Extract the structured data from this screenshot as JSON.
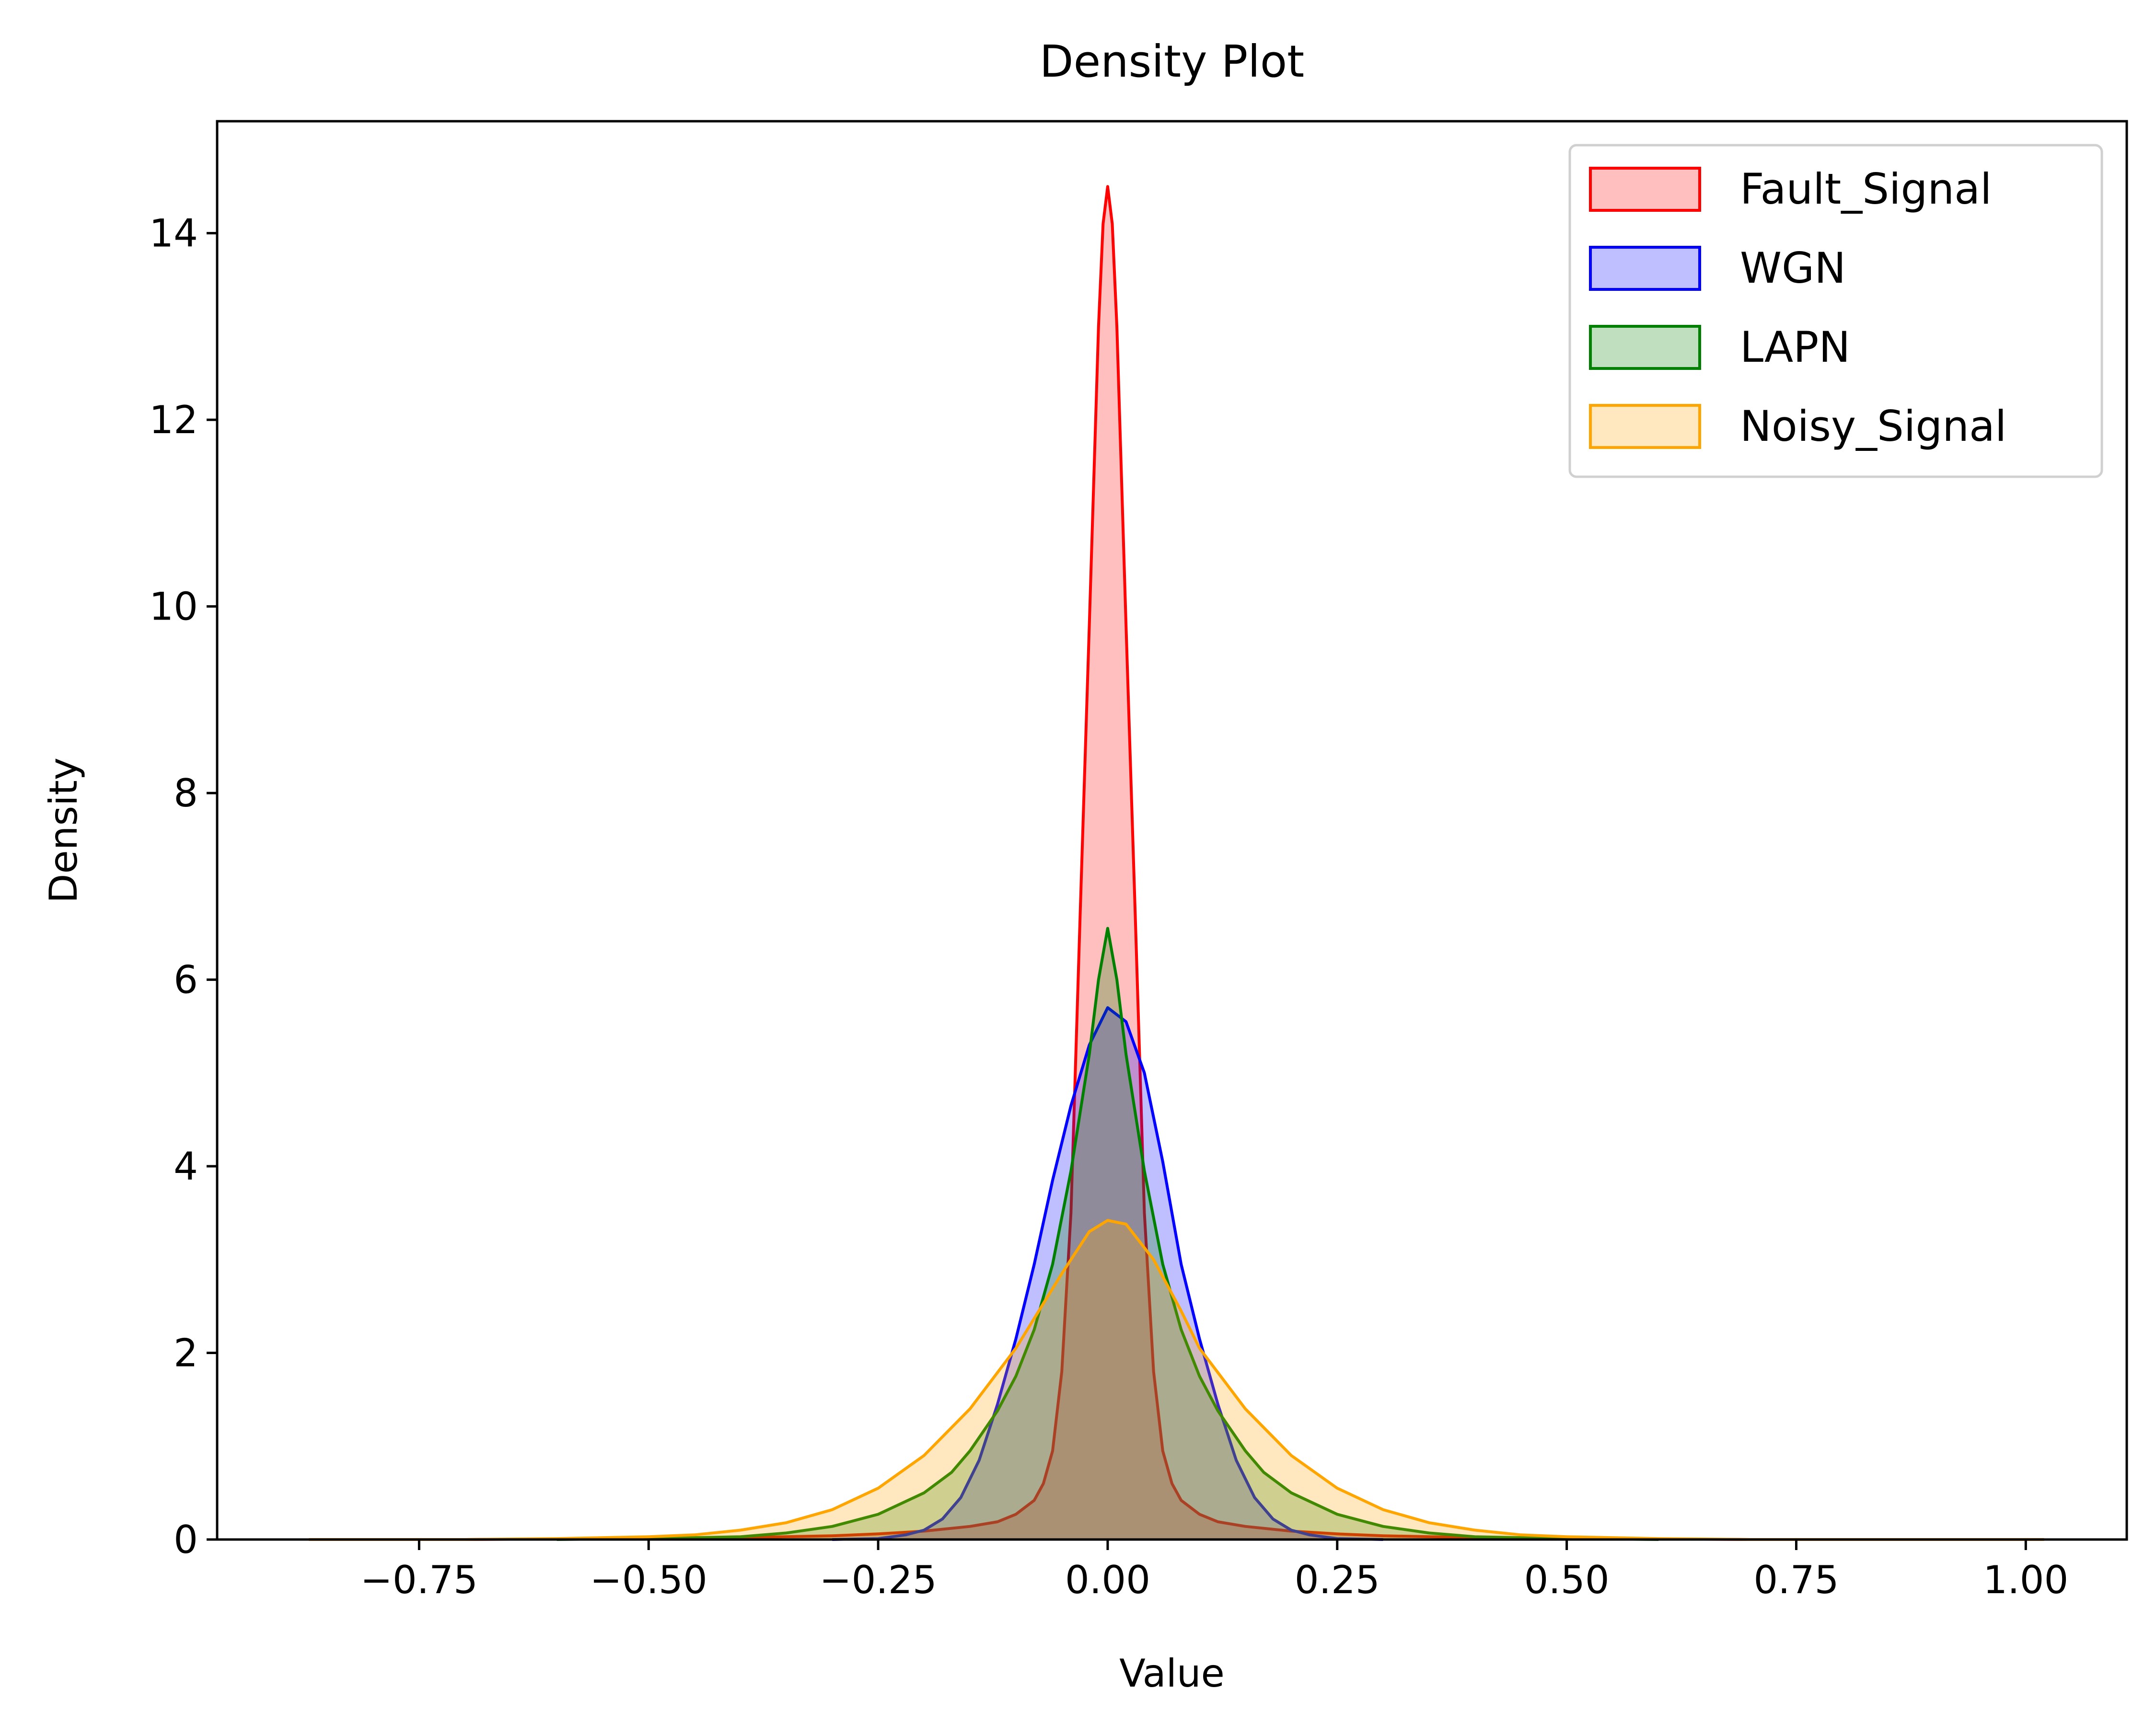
{
  "chart_data": {
    "type": "area",
    "title": "Density Plot",
    "xlabel": "Value",
    "ylabel": "Density",
    "xlim": [
      -0.97,
      1.11
    ],
    "ylim": [
      0,
      15.2
    ],
    "xticks": [
      -0.75,
      -0.5,
      -0.25,
      0.0,
      0.25,
      0.5,
      0.75,
      1.0
    ],
    "xtick_labels": [
      "−0.75",
      "−0.50",
      "−0.25",
      "0.00",
      "0.25",
      "0.50",
      "0.75",
      "1.00"
    ],
    "yticks": [
      0,
      2,
      4,
      6,
      8,
      10,
      12,
      14
    ],
    "ytick_labels": [
      "0",
      "2",
      "4",
      "6",
      "8",
      "10",
      "12",
      "14"
    ],
    "grid": false,
    "legend_position": "top-right",
    "series": [
      {
        "name": "Fault_Signal",
        "color": "#ff0000",
        "fill_opacity": 0.25,
        "points": [
          [
            -0.7,
            0.0
          ],
          [
            -0.5,
            0.01
          ],
          [
            -0.4,
            0.02
          ],
          [
            -0.3,
            0.04
          ],
          [
            -0.25,
            0.06
          ],
          [
            -0.2,
            0.09
          ],
          [
            -0.15,
            0.14
          ],
          [
            -0.12,
            0.19
          ],
          [
            -0.1,
            0.27
          ],
          [
            -0.08,
            0.42
          ],
          [
            -0.07,
            0.6
          ],
          [
            -0.06,
            0.95
          ],
          [
            -0.05,
            1.8
          ],
          [
            -0.04,
            3.5
          ],
          [
            -0.035,
            5.1
          ],
          [
            -0.03,
            6.7
          ],
          [
            -0.02,
            9.8
          ],
          [
            -0.01,
            13.0
          ],
          [
            -0.005,
            14.1
          ],
          [
            0.0,
            14.5
          ],
          [
            0.005,
            14.1
          ],
          [
            0.01,
            13.0
          ],
          [
            0.02,
            9.8
          ],
          [
            0.03,
            6.7
          ],
          [
            0.035,
            5.1
          ],
          [
            0.04,
            3.5
          ],
          [
            0.05,
            1.8
          ],
          [
            0.06,
            0.95
          ],
          [
            0.07,
            0.6
          ],
          [
            0.08,
            0.42
          ],
          [
            0.1,
            0.27
          ],
          [
            0.12,
            0.19
          ],
          [
            0.15,
            0.14
          ],
          [
            0.2,
            0.09
          ],
          [
            0.25,
            0.06
          ],
          [
            0.3,
            0.04
          ],
          [
            0.4,
            0.02
          ],
          [
            0.5,
            0.01
          ],
          [
            0.7,
            0.0
          ]
        ]
      },
      {
        "name": "WGN",
        "color": "#0000ff",
        "fill_opacity": 0.25,
        "points": [
          [
            -0.3,
            0.0
          ],
          [
            -0.25,
            0.01
          ],
          [
            -0.22,
            0.05
          ],
          [
            -0.2,
            0.1
          ],
          [
            -0.18,
            0.22
          ],
          [
            -0.16,
            0.45
          ],
          [
            -0.14,
            0.85
          ],
          [
            -0.12,
            1.45
          ],
          [
            -0.1,
            2.15
          ],
          [
            -0.08,
            2.95
          ],
          [
            -0.06,
            3.85
          ],
          [
            -0.04,
            4.65
          ],
          [
            -0.02,
            5.3
          ],
          [
            0.0,
            5.7
          ],
          [
            0.02,
            5.55
          ],
          [
            0.04,
            5.0
          ],
          [
            0.06,
            4.05
          ],
          [
            0.08,
            2.95
          ],
          [
            0.1,
            2.15
          ],
          [
            0.12,
            1.45
          ],
          [
            0.14,
            0.85
          ],
          [
            0.16,
            0.45
          ],
          [
            0.18,
            0.22
          ],
          [
            0.2,
            0.1
          ],
          [
            0.22,
            0.05
          ],
          [
            0.25,
            0.01
          ],
          [
            0.3,
            0.0
          ]
        ]
      },
      {
        "name": "LAPN",
        "color": "#008000",
        "fill_opacity": 0.25,
        "points": [
          [
            -0.6,
            0.0
          ],
          [
            -0.5,
            0.01
          ],
          [
            -0.4,
            0.03
          ],
          [
            -0.35,
            0.07
          ],
          [
            -0.3,
            0.14
          ],
          [
            -0.25,
            0.27
          ],
          [
            -0.2,
            0.5
          ],
          [
            -0.17,
            0.72
          ],
          [
            -0.15,
            0.95
          ],
          [
            -0.12,
            1.38
          ],
          [
            -0.1,
            1.75
          ],
          [
            -0.08,
            2.25
          ],
          [
            -0.06,
            2.95
          ],
          [
            -0.04,
            3.95
          ],
          [
            -0.02,
            5.2
          ],
          [
            -0.01,
            6.0
          ],
          [
            0.0,
            6.55
          ],
          [
            0.01,
            6.0
          ],
          [
            0.02,
            5.2
          ],
          [
            0.04,
            3.95
          ],
          [
            0.06,
            2.95
          ],
          [
            0.08,
            2.25
          ],
          [
            0.1,
            1.75
          ],
          [
            0.12,
            1.38
          ],
          [
            0.15,
            0.95
          ],
          [
            0.17,
            0.72
          ],
          [
            0.2,
            0.5
          ],
          [
            0.25,
            0.27
          ],
          [
            0.3,
            0.14
          ],
          [
            0.35,
            0.07
          ],
          [
            0.4,
            0.03
          ],
          [
            0.5,
            0.01
          ],
          [
            0.6,
            0.0
          ]
        ]
      },
      {
        "name": "Noisy_Signal",
        "color": "#ffa500",
        "fill_opacity": 0.25,
        "points": [
          [
            -0.87,
            0.0
          ],
          [
            -0.7,
            0.0
          ],
          [
            -0.6,
            0.01
          ],
          [
            -0.5,
            0.03
          ],
          [
            -0.45,
            0.05
          ],
          [
            -0.4,
            0.1
          ],
          [
            -0.35,
            0.18
          ],
          [
            -0.3,
            0.32
          ],
          [
            -0.25,
            0.55
          ],
          [
            -0.2,
            0.9
          ],
          [
            -0.15,
            1.4
          ],
          [
            -0.1,
            2.05
          ],
          [
            -0.05,
            2.85
          ],
          [
            -0.02,
            3.3
          ],
          [
            0.0,
            3.42
          ],
          [
            0.02,
            3.38
          ],
          [
            0.05,
            3.0
          ],
          [
            0.08,
            2.45
          ],
          [
            0.1,
            2.05
          ],
          [
            0.15,
            1.4
          ],
          [
            0.2,
            0.9
          ],
          [
            0.25,
            0.55
          ],
          [
            0.3,
            0.32
          ],
          [
            0.35,
            0.18
          ],
          [
            0.4,
            0.1
          ],
          [
            0.45,
            0.05
          ],
          [
            0.5,
            0.03
          ],
          [
            0.6,
            0.01
          ],
          [
            0.7,
            0.0
          ],
          [
            1.02,
            0.0
          ]
        ]
      }
    ]
  }
}
